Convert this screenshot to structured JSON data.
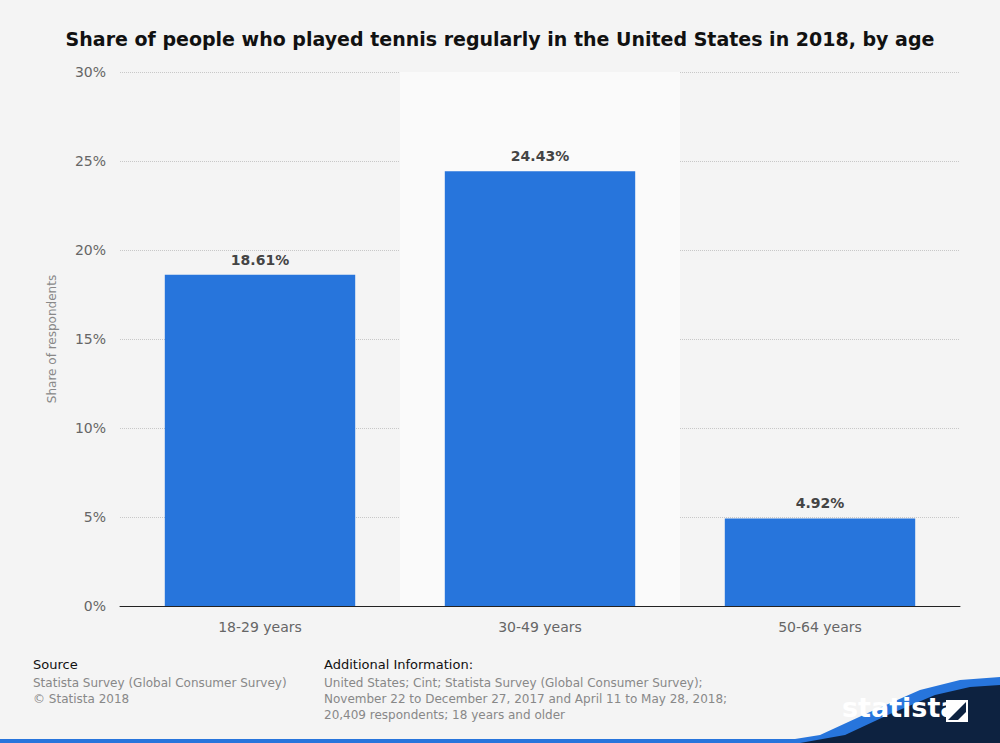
{
  "chart_data": {
    "type": "bar",
    "title": "Share of people who played tennis regularly in the United States in 2018, by age",
    "y_label": "Share of respondents",
    "categories": [
      "18-29 years",
      "30-49 years",
      "50-64 years"
    ],
    "values": [
      18.61,
      24.43,
      4.92
    ],
    "value_labels": [
      "18.61%",
      "24.43%",
      "4.92%"
    ],
    "color": "#2775dc",
    "ylim": [
      0,
      30
    ],
    "yticks": [
      {
        "value": 0,
        "label": "0%"
      },
      {
        "value": 5,
        "label": "5%"
      },
      {
        "value": 10,
        "label": "10%"
      },
      {
        "value": 15,
        "label": "15%"
      },
      {
        "value": 20,
        "label": "20%"
      },
      {
        "value": 25,
        "label": "25%"
      },
      {
        "value": 30,
        "label": "30%"
      }
    ],
    "grid": true,
    "data_labels": true
  },
  "footer": {
    "source_heading": "Source",
    "source_lines": [
      "Statista Survey (Global Consumer Survey)",
      "© Statista 2018"
    ],
    "info_heading": "Additional Information:",
    "info_lines": [
      "United States; Cint; Statista Survey (Global Consumer Survey);",
      "November 22 to December 27, 2017 and April 11 to May 28, 2018;",
      "20,409 respondents; 18 years and older"
    ],
    "logo": "statista"
  }
}
